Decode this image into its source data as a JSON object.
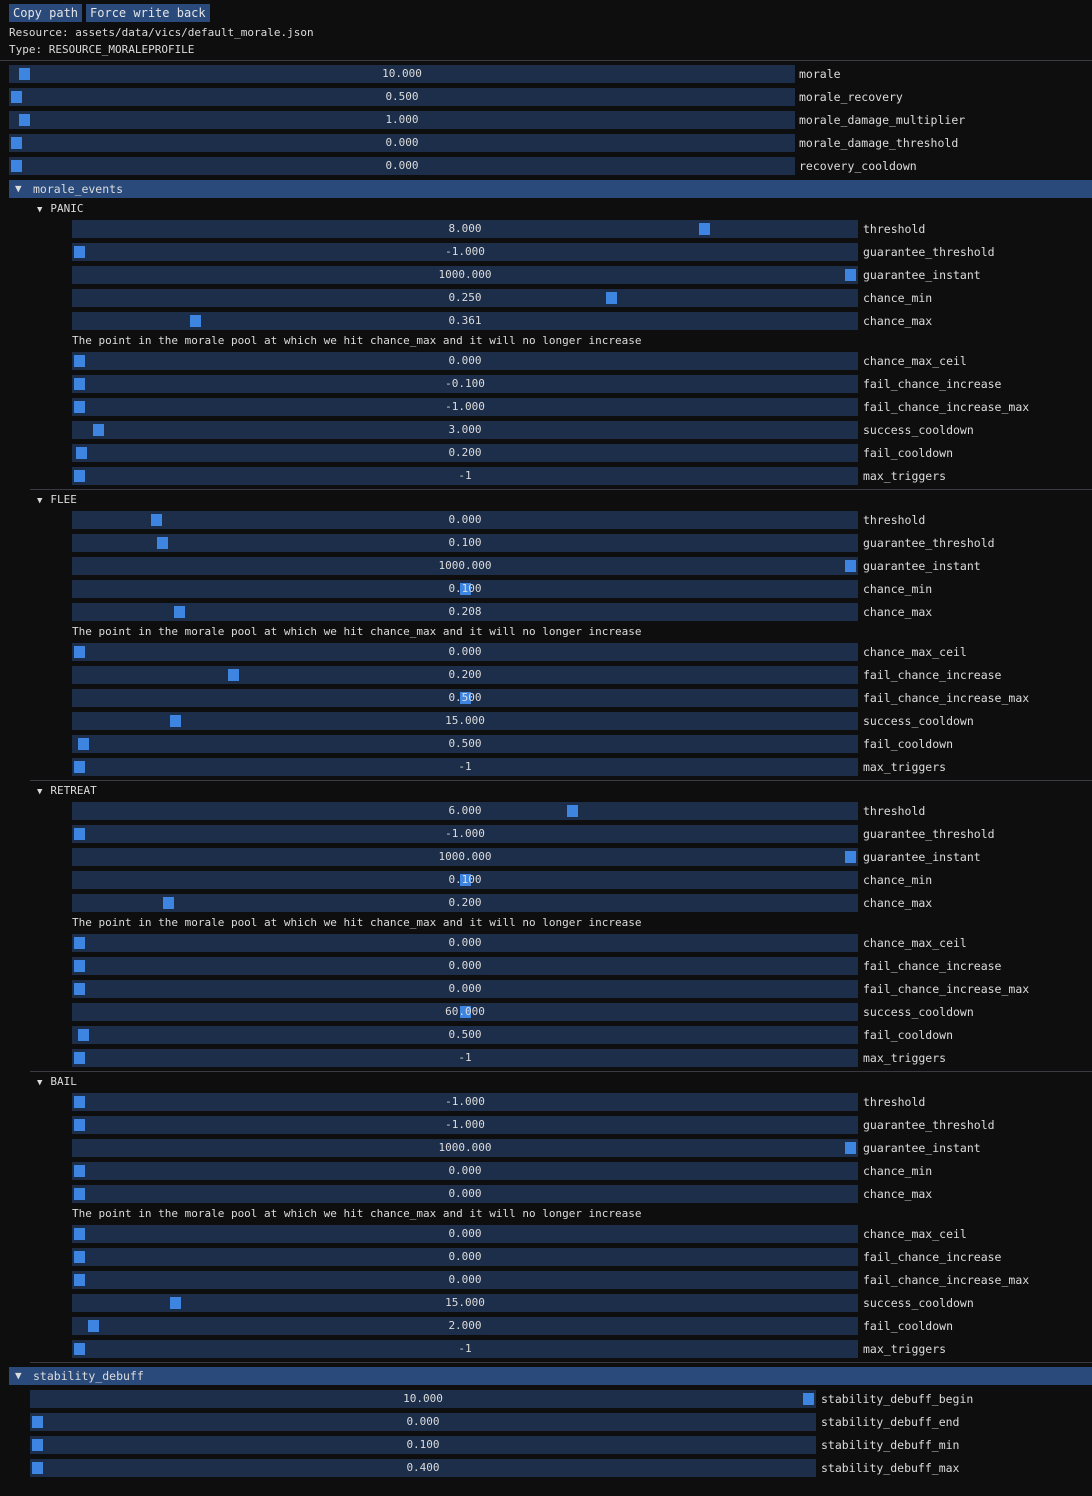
{
  "toolbar": {
    "copy_path": "Copy path",
    "force_write_back": "Force write back"
  },
  "resource_line": "Resource: assets/data/vics/default_morale.json",
  "type_line": "Type: RESOURCE_MORALEPROFILE",
  "top_fields": [
    {
      "value": "10.000",
      "label": "morale",
      "fill": 0.01
    },
    {
      "value": "0.500",
      "label": "morale_recovery",
      "fill": 0.0
    },
    {
      "value": "1.000",
      "label": "morale_damage_multiplier",
      "fill": 0.01
    },
    {
      "value": "0.000",
      "label": "morale_damage_threshold",
      "fill": 0.0
    },
    {
      "value": "0.000",
      "label": "recovery_cooldown",
      "fill": 0.0
    }
  ],
  "morale_events": {
    "label": "morale_events",
    "note": "The point in the morale pool at which we hit chance_max and it will no longer increase",
    "events": [
      {
        "name": "PANIC",
        "fields": [
          {
            "value": "8.000",
            "label": "threshold",
            "fill": 0.81
          },
          {
            "value": "-1.000",
            "label": "guarantee_threshold",
            "fill": 0.0
          },
          {
            "value": "1000.000",
            "label": "guarantee_instant",
            "fill": 1.0
          },
          {
            "value": "0.250",
            "label": "chance_min",
            "fill": 0.69
          },
          {
            "value": "0.361",
            "label": "chance_max",
            "fill": 0.15
          },
          {
            "value": "0.000",
            "label": "chance_max_ceil",
            "fill": 0.0
          },
          {
            "value": "-0.100",
            "label": "fail_chance_increase",
            "fill": 0.0
          },
          {
            "value": "-1.000",
            "label": "fail_chance_increase_max",
            "fill": 0.0
          },
          {
            "value": "3.000",
            "label": "success_cooldown",
            "fill": 0.025
          },
          {
            "value": "0.200",
            "label": "fail_cooldown",
            "fill": 0.002
          },
          {
            "value": "-1",
            "label": "max_triggers",
            "fill": 0.0
          }
        ]
      },
      {
        "name": "FLEE",
        "fields": [
          {
            "value": "0.000",
            "label": "threshold",
            "fill": 0.1
          },
          {
            "value": "0.100",
            "label": "guarantee_threshold",
            "fill": 0.108
          },
          {
            "value": "1000.000",
            "label": "guarantee_instant",
            "fill": 1.0
          },
          {
            "value": "0.100",
            "label": "chance_min",
            "fill": 0.5
          },
          {
            "value": "0.208",
            "label": "chance_max",
            "fill": 0.13
          },
          {
            "value": "0.000",
            "label": "chance_max_ceil",
            "fill": 0.0
          },
          {
            "value": "0.200",
            "label": "fail_chance_increase",
            "fill": 0.2
          },
          {
            "value": "0.500",
            "label": "fail_chance_increase_max",
            "fill": 0.5
          },
          {
            "value": "15.000",
            "label": "success_cooldown",
            "fill": 0.125
          },
          {
            "value": "0.500",
            "label": "fail_cooldown",
            "fill": 0.005
          },
          {
            "value": "-1",
            "label": "max_triggers",
            "fill": 0.0
          }
        ]
      },
      {
        "name": "RETREAT",
        "fields": [
          {
            "value": "6.000",
            "label": "threshold",
            "fill": 0.64
          },
          {
            "value": "-1.000",
            "label": "guarantee_threshold",
            "fill": 0.0
          },
          {
            "value": "1000.000",
            "label": "guarantee_instant",
            "fill": 1.0
          },
          {
            "value": "0.100",
            "label": "chance_min",
            "fill": 0.5
          },
          {
            "value": "0.200",
            "label": "chance_max",
            "fill": 0.115
          },
          {
            "value": "0.000",
            "label": "chance_max_ceil",
            "fill": 0.0
          },
          {
            "value": "0.000",
            "label": "fail_chance_increase",
            "fill": 0.0
          },
          {
            "value": "0.000",
            "label": "fail_chance_increase_max",
            "fill": 0.0
          },
          {
            "value": "60.000",
            "label": "success_cooldown",
            "fill": 0.5
          },
          {
            "value": "0.500",
            "label": "fail_cooldown",
            "fill": 0.005
          },
          {
            "value": "-1",
            "label": "max_triggers",
            "fill": 0.0
          }
        ]
      },
      {
        "name": "BAIL",
        "fields": [
          {
            "value": "-1.000",
            "label": "threshold",
            "fill": 0.0
          },
          {
            "value": "-1.000",
            "label": "guarantee_threshold",
            "fill": 0.0
          },
          {
            "value": "1000.000",
            "label": "guarantee_instant",
            "fill": 1.0
          },
          {
            "value": "0.000",
            "label": "chance_min",
            "fill": 0.0
          },
          {
            "value": "0.000",
            "label": "chance_max",
            "fill": 0.0
          },
          {
            "value": "0.000",
            "label": "chance_max_ceil",
            "fill": 0.0
          },
          {
            "value": "0.000",
            "label": "fail_chance_increase",
            "fill": 0.0
          },
          {
            "value": "0.000",
            "label": "fail_chance_increase_max",
            "fill": 0.0
          },
          {
            "value": "15.000",
            "label": "success_cooldown",
            "fill": 0.125
          },
          {
            "value": "2.000",
            "label": "fail_cooldown",
            "fill": 0.018
          },
          {
            "value": "-1",
            "label": "max_triggers",
            "fill": 0.0
          }
        ]
      }
    ]
  },
  "stability_debuff": {
    "label": "stability_debuff",
    "fields": [
      {
        "value": "10.000",
        "label": "stability_debuff_begin",
        "fill": 1.0
      },
      {
        "value": "0.000",
        "label": "stability_debuff_end",
        "fill": 0.0
      },
      {
        "value": "0.100",
        "label": "stability_debuff_min",
        "fill": 0.0
      },
      {
        "value": "0.400",
        "label": "stability_debuff_max",
        "fill": 0.0
      }
    ]
  },
  "colors": {
    "slider_bg": "#1c2e4a",
    "grab": "#3d85e0",
    "header": "#294a7a"
  }
}
